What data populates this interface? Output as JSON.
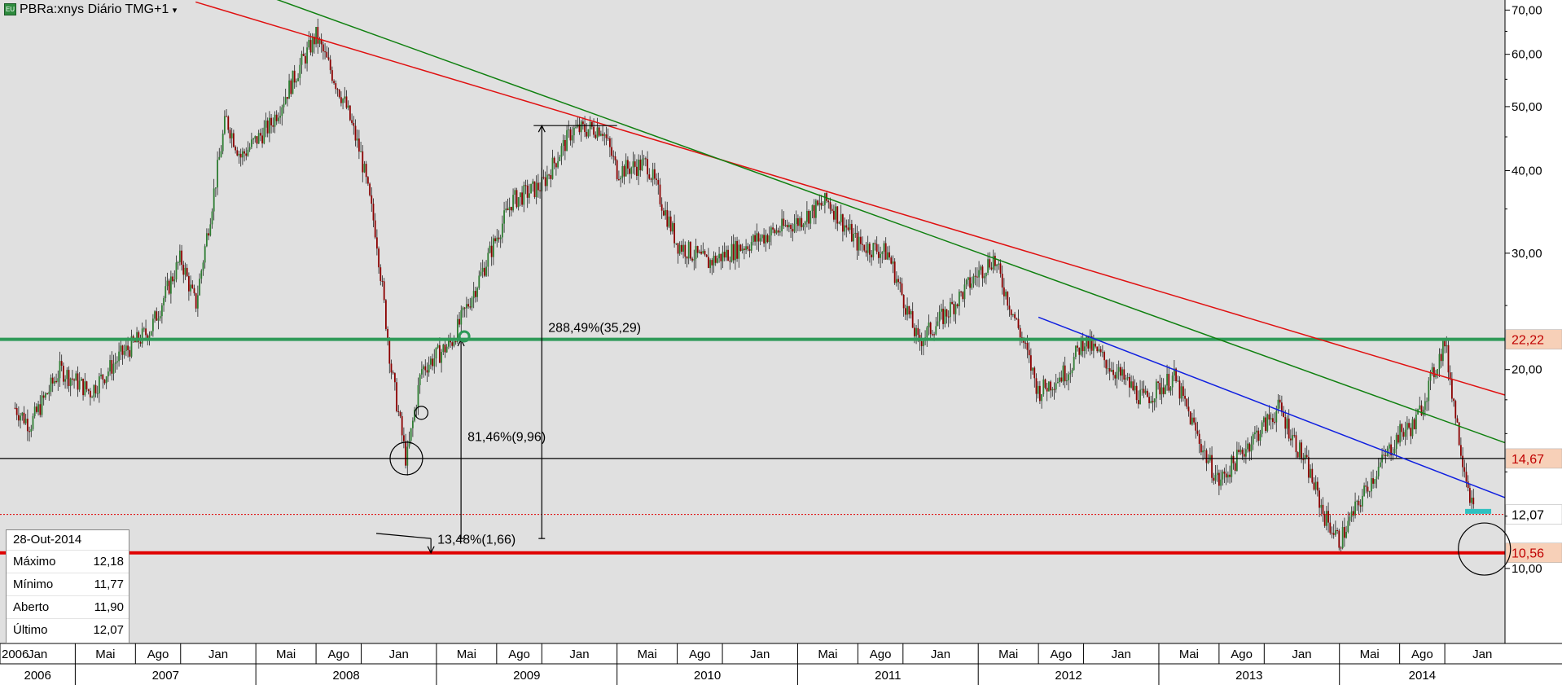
{
  "header": {
    "title": "PBRa:xnys Diário TMG+1",
    "dropdown_glyph": "▾",
    "icon": "chart-series-icon"
  },
  "info_box": {
    "date": "28-Out-2014",
    "rows": [
      {
        "label": "Máximo",
        "value": "12,18"
      },
      {
        "label": "Mínimo",
        "value": "11,77"
      },
      {
        "label": "Aberto",
        "value": "11,90"
      },
      {
        "label": "Último",
        "value": "12,07"
      }
    ]
  },
  "colors": {
    "background": "#e0e0e0",
    "up_candle": "#2e7d32",
    "down_candle": "#8b0000",
    "red_trend": "#e01010",
    "green_trend": "#108010",
    "blue_trend": "#1020e0",
    "support_red": "#e00000",
    "support_green": "#2e9a58",
    "black_level": "#000000",
    "cyan_marker": "#30c0c0"
  },
  "chart_data": {
    "type": "candlestick",
    "scale": "log",
    "ylim": [
      7.7,
      72.5
    ],
    "y_ticks": [
      "70,00",
      "60,00",
      "50,00",
      "40,00",
      "30,00",
      "20,00",
      "10,00"
    ],
    "y_tick_values": [
      70,
      60,
      50,
      40,
      30,
      20,
      10
    ],
    "x_years": [
      "2006",
      "2007",
      "2008",
      "2009",
      "2010",
      "2011",
      "2012",
      "2013",
      "2014"
    ],
    "x_months": [
      "2006",
      "Jan",
      "Mai",
      "Ago",
      "Jan",
      "Mai",
      "Ago",
      "Jan",
      "Mai",
      "Ago",
      "Jan",
      "Mai",
      "Ago",
      "Jan",
      "Mai",
      "Ago",
      "Jan",
      "Mai",
      "Ago",
      "Jan",
      "Mai",
      "Ago",
      "Jan",
      "Mai",
      "Ago",
      "Jan",
      "Mai",
      "Ago"
    ],
    "x_range_dates": [
      "2006-08",
      "2014-12"
    ],
    "price_path": [
      [
        "2006-09",
        17.5
      ],
      [
        "2006-10",
        16.5
      ],
      [
        "2006-12",
        20.0
      ],
      [
        "2007-02",
        18.5
      ],
      [
        "2007-04",
        21.0
      ],
      [
        "2007-06",
        23.0
      ],
      [
        "2007-08",
        29.5
      ],
      [
        "2007-09",
        25.0
      ],
      [
        "2007-11",
        48.0
      ],
      [
        "2007-12",
        42.0
      ],
      [
        "2008-02",
        47.0
      ],
      [
        "2008-04",
        58.0
      ],
      [
        "2008-05",
        64.0
      ],
      [
        "2008-07",
        50.0
      ],
      [
        "2008-08",
        42.0
      ],
      [
        "2008-09",
        32.0
      ],
      [
        "2008-10",
        20.0
      ],
      [
        "2008-11",
        14.5
      ],
      [
        "2008-12",
        20.0
      ],
      [
        "2009-02",
        22.0
      ],
      [
        "2009-04",
        28.0
      ],
      [
        "2009-06",
        36.0
      ],
      [
        "2009-08",
        38.0
      ],
      [
        "2009-10",
        46.0
      ],
      [
        "2009-12",
        46.5
      ],
      [
        "2010-01",
        40.0
      ],
      [
        "2010-03",
        41.0
      ],
      [
        "2010-05",
        31.0
      ],
      [
        "2010-07",
        29.0
      ],
      [
        "2010-09",
        30.5
      ],
      [
        "2010-11",
        32.0
      ],
      [
        "2011-01",
        33.5
      ],
      [
        "2011-03",
        36.0
      ],
      [
        "2011-05",
        31.0
      ],
      [
        "2011-07",
        30.0
      ],
      [
        "2011-09",
        22.0
      ],
      [
        "2011-11",
        24.5
      ],
      [
        "2012-01",
        28.0
      ],
      [
        "2012-02",
        29.5
      ],
      [
        "2012-04",
        22.0
      ],
      [
        "2012-05",
        18.5
      ],
      [
        "2012-07",
        20.0
      ],
      [
        "2012-08",
        22.2
      ],
      [
        "2012-10",
        20.0
      ],
      [
        "2012-12",
        18.0
      ],
      [
        "2013-02",
        19.5
      ],
      [
        "2013-04",
        15.0
      ],
      [
        "2013-05",
        13.5
      ],
      [
        "2013-07",
        15.5
      ],
      [
        "2013-09",
        17.5
      ],
      [
        "2013-11",
        14.0
      ],
      [
        "2013-12",
        12.0
      ],
      [
        "2014-01",
        11.0
      ],
      [
        "2014-03",
        13.5
      ],
      [
        "2014-05",
        16.0
      ],
      [
        "2014-06",
        16.5
      ],
      [
        "2014-08",
        22.0
      ],
      [
        "2014-09",
        15.5
      ],
      [
        "2014-10",
        11.9
      ]
    ],
    "horizontal_levels": [
      {
        "value": 22.22,
        "label": "22,22",
        "color": "#2e9a58",
        "style": "thick"
      },
      {
        "value": 14.67,
        "label": "14,67",
        "color": "#000000",
        "style": "thin"
      },
      {
        "value": 12.07,
        "label": "12,07",
        "color": "#e00000",
        "style": "dotted"
      },
      {
        "value": 10.56,
        "label": "10,56",
        "color": "#e00000",
        "style": "thick"
      }
    ],
    "trend_lines": [
      {
        "color": "#e01010",
        "from": [
          "2007-09",
          72.0
        ],
        "to": [
          "2014-12",
          18.3
        ]
      },
      {
        "color": "#108010",
        "from": [
          "2007-12",
          76.0
        ],
        "to": [
          "2014-12",
          15.5
        ]
      },
      {
        "color": "#1020e0",
        "from": [
          "2012-05",
          24.0
        ],
        "to": [
          "2014-12",
          12.8
        ]
      }
    ],
    "annotations": [
      {
        "text": "288,49%(35,29)"
      },
      {
        "text": "81,46%(9,96)"
      },
      {
        "text": "13,48%(1,66)"
      }
    ]
  }
}
